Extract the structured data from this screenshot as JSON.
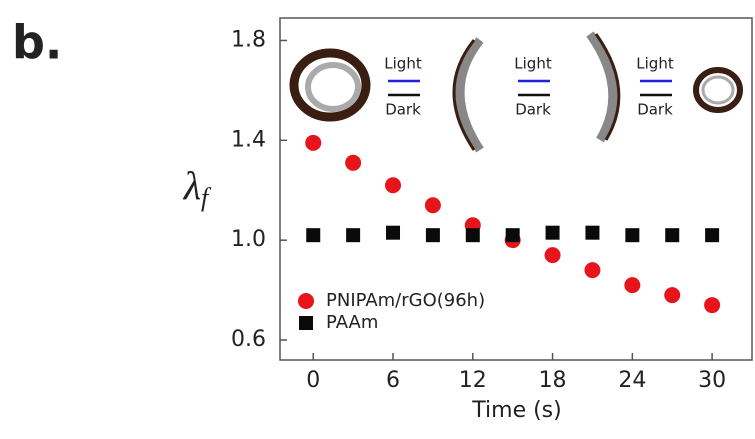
{
  "chart_data": {
    "type": "scatter",
    "panel_label": "b.",
    "ylabel": {
      "symbol": "λ",
      "subscript": "f"
    },
    "xlabel": "Time (s)",
    "xlim": [
      -2.5,
      33
    ],
    "ylim": [
      0.52,
      1.89
    ],
    "xticks": [
      0,
      6,
      12,
      18,
      24,
      30
    ],
    "yticks": [
      0.6,
      {
        "value": 1,
        "label": "1.0"
      },
      1.4,
      1.8
    ],
    "x": [
      0,
      3,
      6,
      9,
      12,
      15,
      18,
      21,
      24,
      27,
      30
    ],
    "series": [
      {
        "name": "PNIPAm/rGO(96h)",
        "color": "#e8141c",
        "marker": "circle",
        "values": [
          1.39,
          1.31,
          1.22,
          1.14,
          1.06,
          1.0,
          0.94,
          0.88,
          0.82,
          0.78,
          0.74
        ]
      },
      {
        "name": "PAAm",
        "color": "#0a0a0a",
        "marker": "square",
        "values": [
          1.02,
          1.02,
          1.03,
          1.02,
          1.02,
          1.02,
          1.03,
          1.03,
          1.02,
          1.02,
          1.02
        ]
      }
    ],
    "annotations": [
      "Light",
      "Dark",
      "Light",
      "Dark",
      "Light",
      "Dark"
    ]
  }
}
